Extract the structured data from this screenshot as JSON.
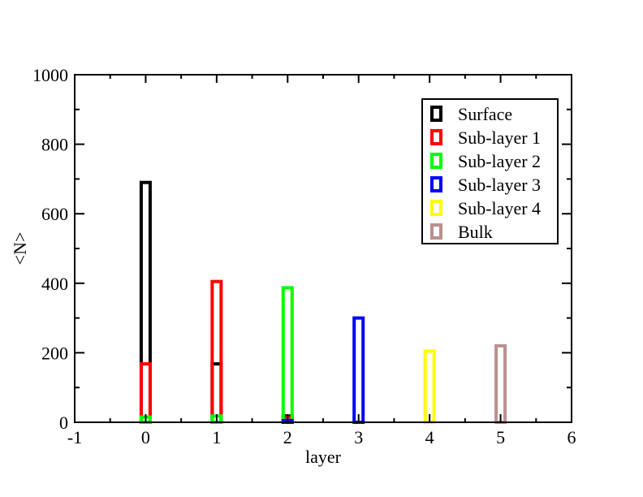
{
  "chart_data": {
    "type": "bar",
    "xlabel": "layer",
    "ylabel": "<N>",
    "xlim": [
      -1,
      6
    ],
    "ylim": [
      0,
      1000
    ],
    "xticks": [
      "-1",
      "0",
      "1",
      "2",
      "3",
      "4",
      "5",
      "6"
    ],
    "yticks": [
      "0",
      "200",
      "400",
      "600",
      "800",
      "1000"
    ],
    "legend_position": "top-right",
    "series": [
      {
        "name": "Surface",
        "color": "#000000",
        "points": [
          [
            0,
            690
          ],
          [
            1,
            168
          ],
          [
            2,
            18
          ]
        ]
      },
      {
        "name": "Sub-layer 1",
        "color": "#ff0000",
        "points": [
          [
            0,
            168
          ],
          [
            1,
            405
          ],
          [
            2,
            15
          ]
        ]
      },
      {
        "name": "Sub-layer 2",
        "color": "#00ff00",
        "points": [
          [
            0,
            15
          ],
          [
            1,
            18
          ],
          [
            2,
            387
          ]
        ]
      },
      {
        "name": "Sub-layer 3",
        "color": "#0000ff",
        "points": [
          [
            2,
            5
          ],
          [
            3,
            300
          ]
        ]
      },
      {
        "name": "Sub-layer 4",
        "color": "#ffff00",
        "points": [
          [
            4,
            205
          ]
        ]
      },
      {
        "name": "Bulk",
        "color": "#bc8f8f",
        "points": [
          [
            5,
            220
          ]
        ]
      }
    ]
  }
}
